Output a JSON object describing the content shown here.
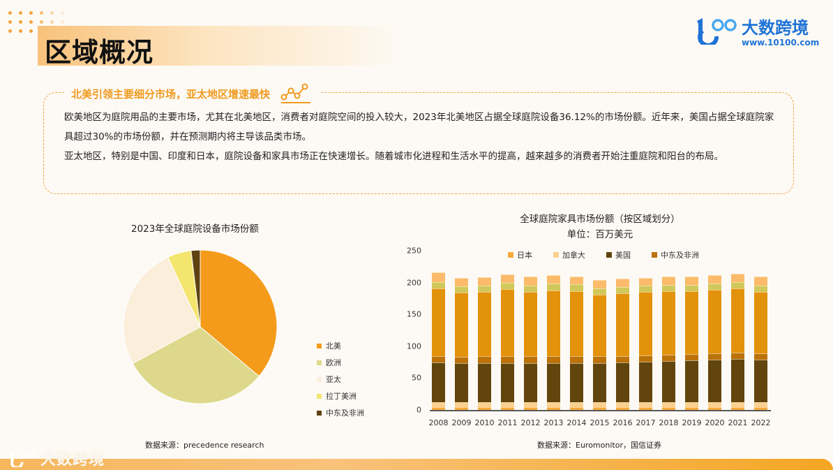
{
  "header": {
    "title": "区域概况",
    "logo": {
      "brand": "大数跨境",
      "url": "www.10100.com",
      "mark": "1OO"
    }
  },
  "callout": {
    "heading": "北美引领主要细分市场，亚太地区增速最快",
    "icon": "trend-line-icon",
    "paragraphs": [
      "欧美地区为庭院用品的主要市场，尤其在北美地区，消费者对庭院空间的投入较大，2023年北美地区占据全球庭院设备36.12%的市场份额。近年来，美国占据全球庭院家具超过30%的市场份额，并在预测期内将主导该品类市场。",
      "亚太地区，特别是中国、印度和日本，庭院设备和家具市场正在快速增长。随着城市化进程和生活水平的提高，越来越多的消费者开始注重庭院和阳台的布局。"
    ]
  },
  "pie_chart": {
    "source": "数据来源：precedence research"
  },
  "bar_chart": {
    "source": "数据来源：Euromonitor，国信证券"
  },
  "footer": {
    "brand": "大数跨境"
  },
  "chart_data": [
    {
      "type": "pie",
      "title": "2023年全球庭院设备市场份额",
      "labels": [
        "北美",
        "欧洲",
        "亚太",
        "拉丁美洲",
        "中东及非洲"
      ],
      "values": [
        36.12,
        31.0,
        26.0,
        5.0,
        1.9
      ],
      "colors": [
        "#f59b1b",
        "#ded88c",
        "#fbeeda",
        "#f3e56e",
        "#5e4210"
      ],
      "legend_position": "right"
    },
    {
      "type": "bar",
      "stacked": true,
      "title": "全球庭院家具市场份额（按区域划分）",
      "subtitle": "单位：百万美元",
      "categories": [
        "2008",
        "2009",
        "2010",
        "2011",
        "2012",
        "2013",
        "2014",
        "2015",
        "2016",
        "2017",
        "2018",
        "2019",
        "2020",
        "2021",
        "2022"
      ],
      "ylim": [
        0,
        250
      ],
      "yticks": [
        0,
        50,
        100,
        150,
        200,
        250
      ],
      "grid": false,
      "legend_position": "top",
      "legend": [
        "日本",
        "加拿大",
        "美国",
        "中东及非洲"
      ],
      "series": [
        {
          "name": "日本",
          "color": "#f5aa3c",
          "values": [
            4,
            4,
            4,
            4,
            4,
            4,
            4,
            4,
            4,
            4,
            4,
            4,
            4,
            4,
            4
          ]
        },
        {
          "name": "加拿大",
          "color": "#fbd08e",
          "values": [
            8,
            8,
            8,
            8,
            8,
            8,
            8,
            8,
            8,
            8,
            8,
            8,
            8,
            8,
            8
          ]
        },
        {
          "name": "美国",
          "color": "#62450c",
          "values": [
            63,
            61,
            62,
            62,
            62,
            62,
            62,
            62,
            63,
            64,
            65,
            66,
            67,
            68,
            67
          ]
        },
        {
          "name": "中东及非洲",
          "color": "#bb7209",
          "values": [
            10,
            10,
            10,
            10,
            10,
            10,
            10,
            10,
            10,
            10,
            10,
            10,
            10,
            10,
            10
          ]
        },
        {
          "name": "",
          "color": "#e3920c",
          "values": [
            106,
            101,
            101,
            106,
            101,
            104,
            103,
            97,
            98,
            99,
            99,
            98,
            100,
            101,
            96
          ]
        },
        {
          "name": "",
          "color": "#d0c85a",
          "values": [
            10,
            10,
            10,
            10,
            10,
            10,
            10,
            10,
            10,
            10,
            10,
            10,
            10,
            10,
            10
          ]
        },
        {
          "name": "",
          "color": "#fbbb6a",
          "values": [
            15,
            13,
            13,
            13,
            14,
            14,
            13,
            13,
            13,
            12,
            13,
            13,
            13,
            13,
            15
          ]
        }
      ]
    }
  ]
}
